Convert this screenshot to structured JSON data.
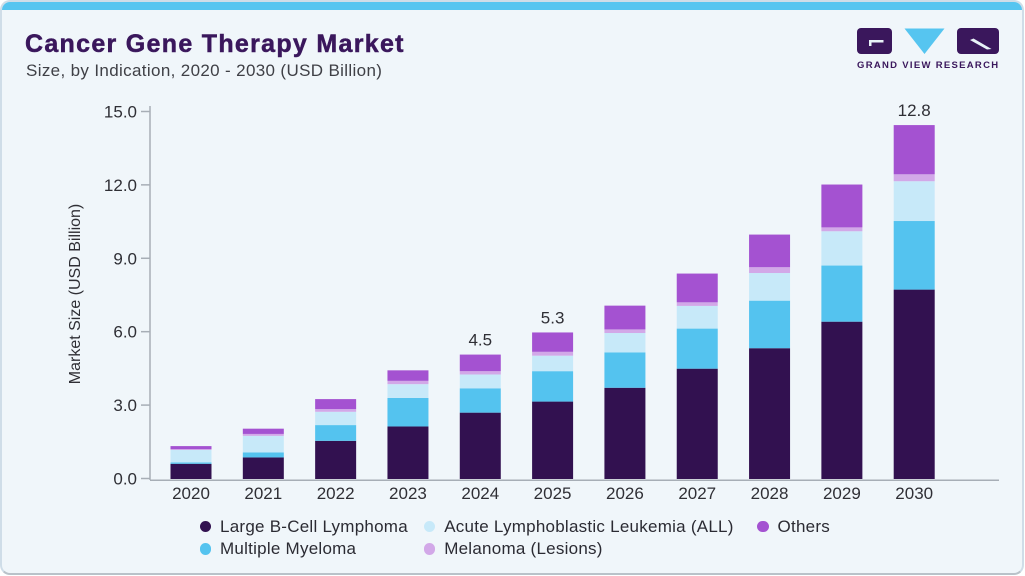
{
  "header": {
    "title": "Cancer Gene Therapy Market",
    "subtitle": "Size, by Indication, 2020 - 2030 (USD Billion)"
  },
  "logo": {
    "text": "GRAND VIEW RESEARCH"
  },
  "colors": {
    "accent_strip": "#56c5f0",
    "title": "#3a175c",
    "axis_line": "#a7aeb6",
    "text": "#2f2f35"
  },
  "chart_data": {
    "type": "bar",
    "stacked": true,
    "title": "Cancer Gene Therapy Market Size, by Indication, 2020 - 2030 (USD Billion)",
    "xlabel": "",
    "ylabel": "Market Size (USD Billion)",
    "ylim": [
      0,
      15
    ],
    "yticks": [
      "0.0",
      "3.0",
      "6.0",
      "9.0",
      "12.0",
      "15.0"
    ],
    "grid": false,
    "legend_position": "bottom",
    "categories": [
      "2020",
      "2021",
      "2022",
      "2023",
      "2024",
      "2025",
      "2026",
      "2027",
      "2028",
      "2029",
      "2030"
    ],
    "series": [
      {
        "name": "Large B-Cell Lymphoma",
        "color": "#321150",
        "values": [
          0.55,
          0.78,
          1.38,
          1.9,
          2.4,
          2.8,
          3.3,
          3.99,
          4.73,
          5.69,
          6.85
        ]
      },
      {
        "name": "Multiple Myeloma",
        "color": "#54c3ef",
        "values": [
          0.05,
          0.18,
          0.57,
          1.03,
          0.88,
          1.1,
          1.28,
          1.45,
          1.72,
          2.03,
          2.48
        ]
      },
      {
        "name": "Acute Lymphoblastic Leukemia (ALL)",
        "color": "#c7e9f9",
        "values": [
          0.45,
          0.6,
          0.48,
          0.5,
          0.5,
          0.56,
          0.7,
          0.82,
          1.0,
          1.24,
          1.44
        ]
      },
      {
        "name": "Melanoma (Lesions)",
        "color": "#d2a8e8",
        "values": [
          0.03,
          0.07,
          0.1,
          0.12,
          0.12,
          0.14,
          0.13,
          0.13,
          0.21,
          0.14,
          0.25
        ]
      },
      {
        "name": "Others",
        "color": "#a452d1",
        "values": [
          0.11,
          0.19,
          0.36,
          0.38,
          0.6,
          0.7,
          0.86,
          1.04,
          1.18,
          1.55,
          1.78
        ]
      }
    ],
    "annotations": [
      {
        "category": "2024",
        "label": "4.5"
      },
      {
        "category": "2025",
        "label": "5.3"
      },
      {
        "category": "2030",
        "label": "12.8"
      }
    ]
  },
  "legend": {
    "rows": [
      [
        {
          "label": "Large B-Cell Lymphoma",
          "color": "#321150"
        },
        {
          "label": "Acute Lymphoblastic Leukemia (ALL)",
          "color": "#c7e9f9"
        },
        {
          "label": "Others",
          "color": "#a452d1"
        }
      ],
      [
        {
          "label": "Multiple Myeloma",
          "color": "#54c3ef"
        },
        {
          "label": "Melanoma (Lesions)",
          "color": "#d2a8e8"
        }
      ]
    ]
  }
}
